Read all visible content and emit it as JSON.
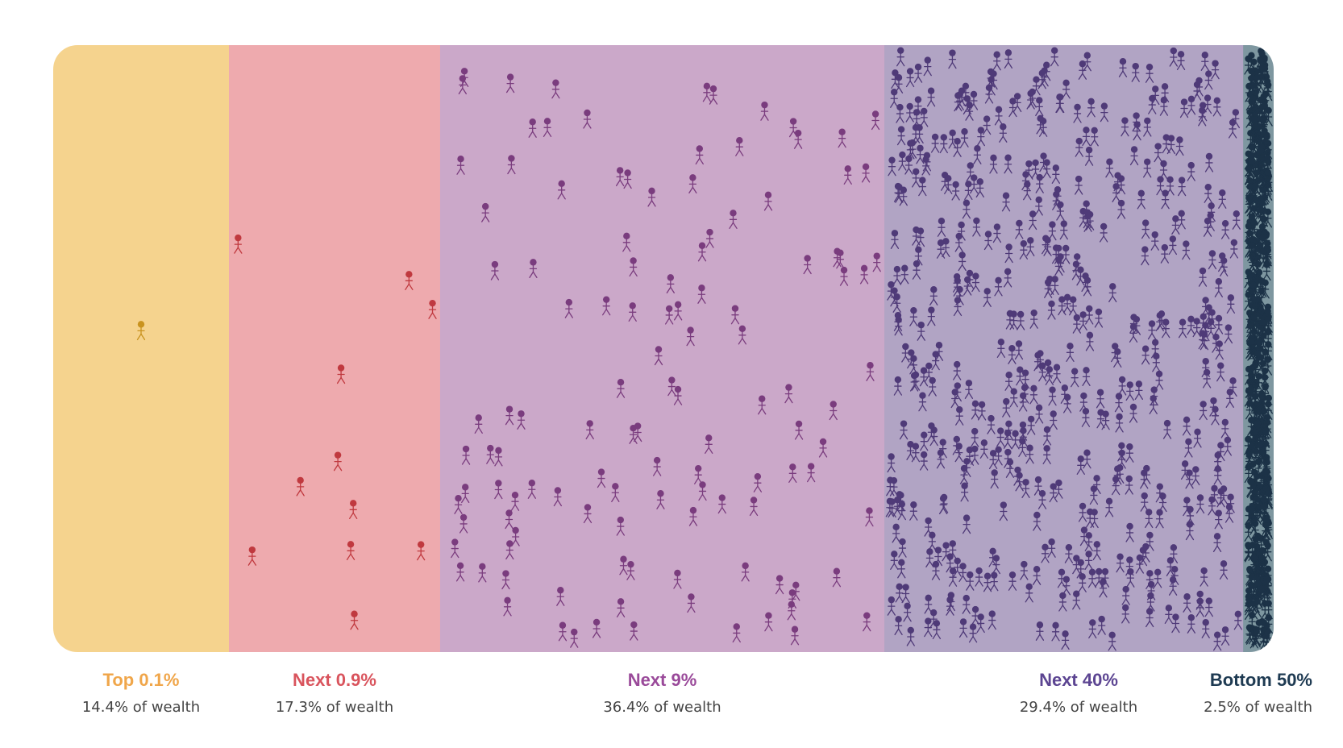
{
  "chart_data": {
    "type": "area",
    "title": "",
    "categories": [
      "Top 0.1%",
      "Next 0.9%",
      "Next 9%",
      "Next 40%",
      "Bottom 50%"
    ],
    "values": [
      14.4,
      17.3,
      36.4,
      29.4,
      2.5
    ],
    "value_labels": [
      "14.4% of wealth",
      "17.3% of wealth",
      "36.4% of wealth",
      "29.4% of wealth",
      "2.5% of wealth"
    ],
    "population_share": [
      0.1,
      0.9,
      9,
      40,
      50
    ],
    "people_shown": [
      1,
      11,
      120,
      540,
      450
    ],
    "grid": false,
    "legend": "below",
    "colors": {
      "bg": [
        "#f5d38e",
        "#eeaaae",
        "#cba8c9",
        "#b1a4c4",
        "#7e97a0"
      ],
      "figure": [
        "#c9931f",
        "#c0393f",
        "#7a3c7e",
        "#4f3a78",
        "#1c3247"
      ],
      "label": [
        "#f0a64a",
        "#d9545d",
        "#9a4a9a",
        "#5c4592",
        "#1e3a52"
      ]
    }
  }
}
